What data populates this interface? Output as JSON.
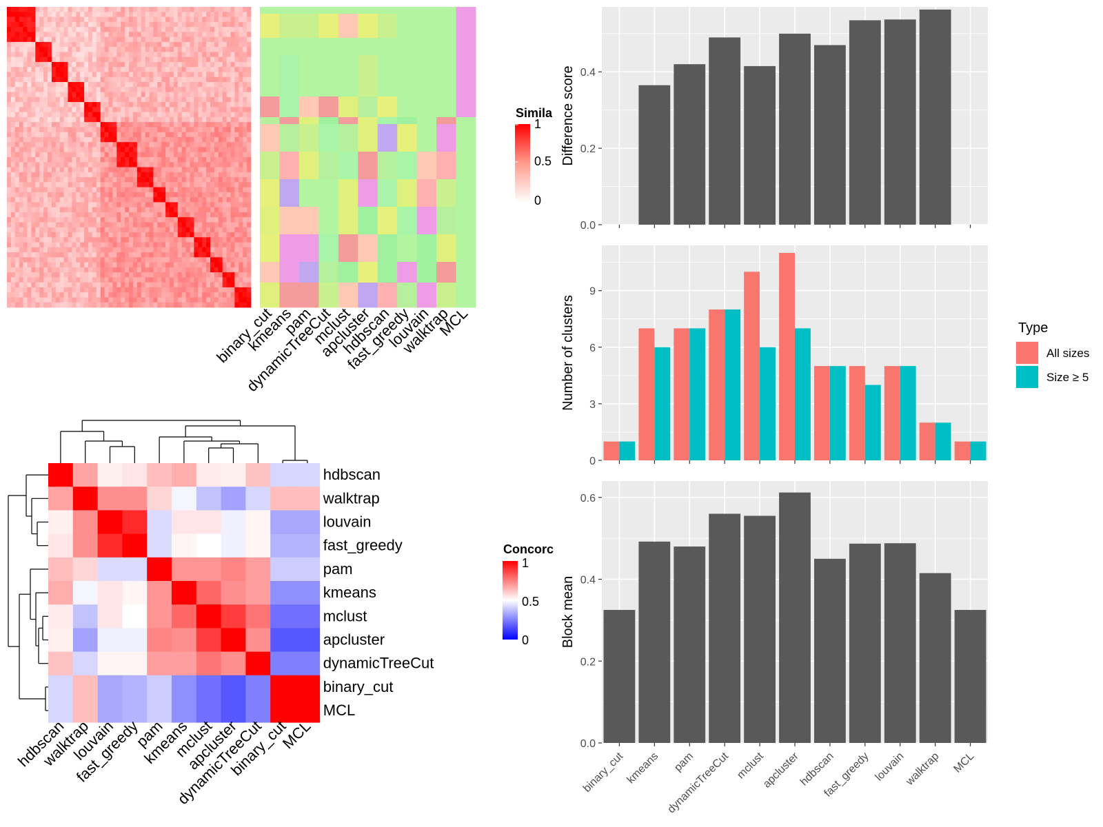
{
  "colors": {
    "panel_bg": "#EBEBEB",
    "grid": "#FFFFFF",
    "bar": "#595959",
    "all_sizes": "#F8766D",
    "size_ge5": "#00BFC4",
    "heat_high": "#FF0000",
    "heat_mid": "#FFFFFF",
    "heat_low": "#0000FF"
  },
  "chart_data": [
    {
      "id": "similarity-heatmap",
      "type": "heatmap",
      "columns": [
        "binary_cut",
        "kmeans",
        "pam",
        "dynamicTreeCut",
        "mclust",
        "apcluster",
        "hdbscan",
        "fast_greedy",
        "louvain",
        "walktrap",
        "MCL"
      ],
      "legend": {
        "title": "Simila",
        "ticks": [
          "1",
          "0.5",
          "0"
        ]
      }
    },
    {
      "id": "concordance-heatmap",
      "type": "heatmap",
      "rows": [
        "hdbscan",
        "walktrap",
        "louvain",
        "fast_greedy",
        "pam",
        "kmeans",
        "mclust",
        "apcluster",
        "dynamicTreeCut",
        "binary_cut",
        "MCL"
      ],
      "columns": [
        "hdbscan",
        "walktrap",
        "louvain",
        "fast_greedy",
        "pam",
        "kmeans",
        "mclust",
        "apcluster",
        "dynamicTreeCut",
        "binary_cut",
        "MCL"
      ],
      "values": [
        [
          1.0,
          0.68,
          0.53,
          0.55,
          0.63,
          0.66,
          0.54,
          0.53,
          0.62,
          0.42,
          0.42
        ],
        [
          0.68,
          1.0,
          0.72,
          0.72,
          0.58,
          0.48,
          0.38,
          0.32,
          0.42,
          0.63,
          0.63
        ],
        [
          0.53,
          0.72,
          1.0,
          0.92,
          0.43,
          0.55,
          0.55,
          0.47,
          0.52,
          0.33,
          0.33
        ],
        [
          0.55,
          0.72,
          0.92,
          1.0,
          0.43,
          0.52,
          0.5,
          0.47,
          0.52,
          0.35,
          0.35
        ],
        [
          0.63,
          0.58,
          0.43,
          0.43,
          1.0,
          0.71,
          0.71,
          0.74,
          0.69,
          0.4,
          0.4
        ],
        [
          0.66,
          0.48,
          0.55,
          0.52,
          0.71,
          1.0,
          0.8,
          0.72,
          0.69,
          0.28,
          0.28
        ],
        [
          0.54,
          0.38,
          0.55,
          0.5,
          0.71,
          0.8,
          1.0,
          0.88,
          0.77,
          0.22,
          0.22
        ],
        [
          0.53,
          0.32,
          0.47,
          0.47,
          0.74,
          0.72,
          0.88,
          1.0,
          0.72,
          0.17,
          0.17
        ],
        [
          0.62,
          0.42,
          0.52,
          0.52,
          0.69,
          0.69,
          0.77,
          0.72,
          1.0,
          0.25,
          0.25
        ],
        [
          0.42,
          0.63,
          0.33,
          0.35,
          0.4,
          0.28,
          0.22,
          0.17,
          0.25,
          1.0,
          1.0
        ],
        [
          0.42,
          0.63,
          0.33,
          0.35,
          0.4,
          0.28,
          0.22,
          0.17,
          0.25,
          1.0,
          1.0
        ]
      ],
      "legend": {
        "title": "Concorc",
        "ticks": [
          "1",
          "0.5",
          "0"
        ]
      }
    },
    {
      "id": "difference-score",
      "type": "bar",
      "categories": [
        "binary_cut",
        "kmeans",
        "pam",
        "dynamicTreeCut",
        "mclust",
        "apcluster",
        "hdbscan",
        "fast_greedy",
        "louvain",
        "walktrap",
        "MCL"
      ],
      "values": [
        0,
        0.365,
        0.42,
        0.49,
        0.415,
        0.5,
        0.47,
        0.535,
        0.537,
        0.563,
        0
      ],
      "ylabel": "Difference score",
      "ylim": [
        0,
        0.57
      ],
      "yticks": [
        0.0,
        0.2,
        0.4
      ],
      "ytick_labels": [
        "0.0",
        "0.2",
        "0.4"
      ]
    },
    {
      "id": "number-of-clusters",
      "type": "bar",
      "categories": [
        "binary_cut",
        "kmeans",
        "pam",
        "dynamicTreeCut",
        "mclust",
        "apcluster",
        "hdbscan",
        "fast_greedy",
        "louvain",
        "walktrap",
        "MCL"
      ],
      "series": [
        {
          "name": "All sizes",
          "values": [
            1,
            7,
            7,
            8,
            10,
            11,
            5,
            5,
            5,
            2,
            1
          ]
        },
        {
          "name": "Size ≥ 5",
          "values": [
            1,
            6,
            7,
            8,
            6,
            7,
            5,
            4,
            5,
            2,
            1
          ]
        }
      ],
      "ylabel": "Number of clusters",
      "ylim": [
        0,
        11.4
      ],
      "yticks": [
        0,
        3,
        6,
        9
      ],
      "ytick_labels": [
        "0",
        "3",
        "6",
        "9"
      ],
      "legend": {
        "title": "Type",
        "placement": "right"
      }
    },
    {
      "id": "block-mean",
      "type": "bar",
      "categories": [
        "binary_cut",
        "kmeans",
        "pam",
        "dynamicTreeCut",
        "mclust",
        "apcluster",
        "hdbscan",
        "fast_greedy",
        "louvain",
        "walktrap",
        "MCL"
      ],
      "values": [
        0.325,
        0.492,
        0.48,
        0.56,
        0.555,
        0.612,
        0.45,
        0.487,
        0.488,
        0.415,
        0.325
      ],
      "ylabel": "Block mean",
      "ylim": [
        0,
        0.64
      ],
      "yticks": [
        0.0,
        0.2,
        0.4,
        0.6
      ],
      "ytick_labels": [
        "0.0",
        "0.2",
        "0.4",
        "0.6"
      ]
    }
  ]
}
